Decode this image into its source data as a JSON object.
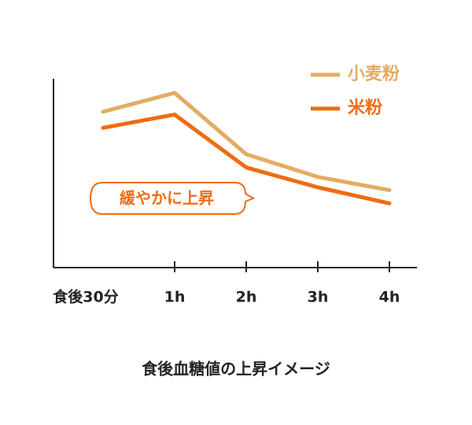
{
  "chart_data": {
    "type": "line",
    "caption": "食後血糖値の上昇イメージ",
    "annotation": "緩やかに上昇",
    "categories": [
      "食後30分",
      "1h",
      "2h",
      "3h",
      "4h"
    ],
    "series": [
      {
        "name": "小麦粉",
        "color": "#e3ac62",
        "values": [
          82.5,
          92.5,
          60,
          48,
          41
        ]
      },
      {
        "name": "米粉",
        "color": "#ef6c12",
        "values": [
          74,
          81,
          53,
          42.5,
          34
        ]
      }
    ],
    "ylim": [
      0,
      100
    ],
    "legend": "top-right"
  }
}
